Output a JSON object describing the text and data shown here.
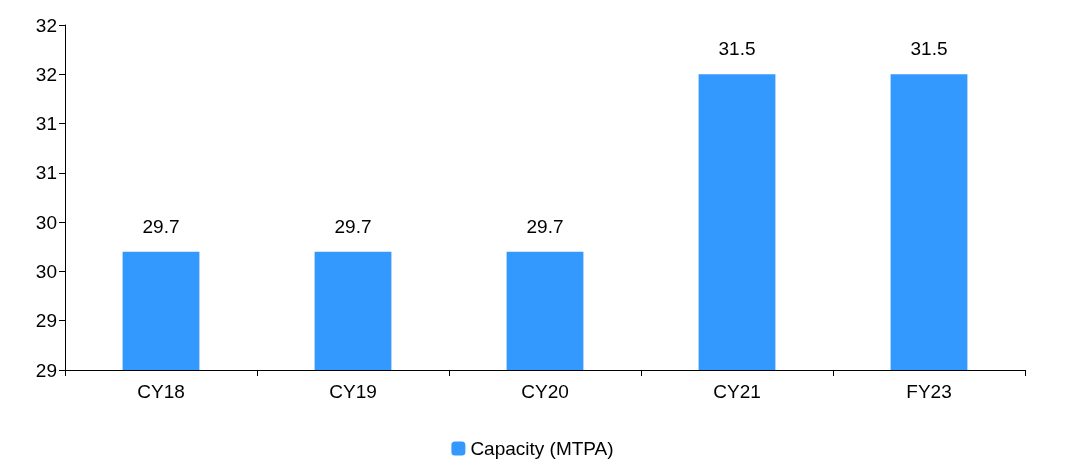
{
  "chart_data": {
    "type": "bar",
    "categories": [
      "CY18",
      "CY19",
      "CY20",
      "CY21",
      "FY23"
    ],
    "series": [
      {
        "name": "Capacity (MTPA)",
        "color": "#3399ff",
        "values": [
          29.7,
          29.7,
          29.7,
          31.5,
          31.5
        ]
      }
    ],
    "ylim": [
      28.5,
      32
    ],
    "yticks": [
      {
        "value": 28.5,
        "label": "29"
      },
      {
        "value": 29,
        "label": "29"
      },
      {
        "value": 29.5,
        "label": "30"
      },
      {
        "value": 30,
        "label": "30"
      },
      {
        "value": 30.5,
        "label": "31"
      },
      {
        "value": 31,
        "label": "31"
      },
      {
        "value": 31.5,
        "label": "32"
      },
      {
        "value": 32,
        "label": "32"
      }
    ],
    "data_labels": true,
    "legend": "bottom",
    "grid": false
  }
}
